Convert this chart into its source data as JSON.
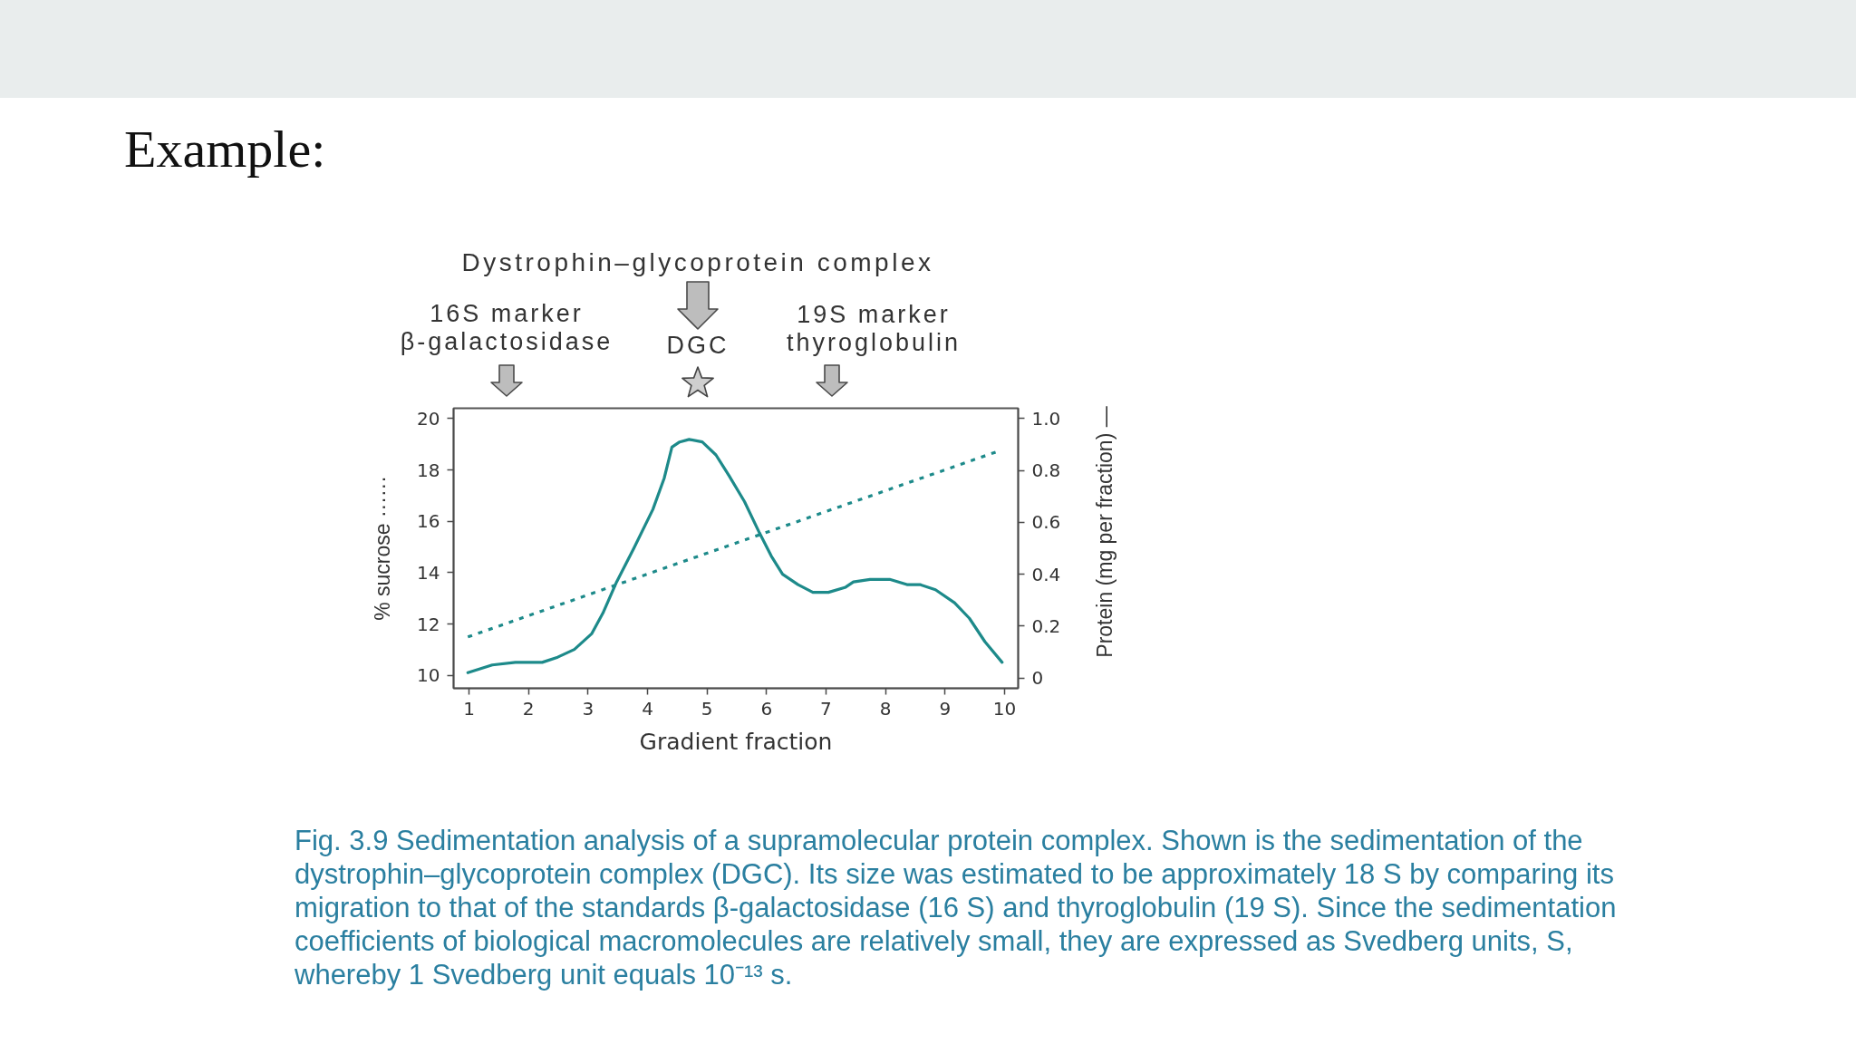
{
  "chart_data": {
    "type": "line",
    "title": "Example:",
    "xlabel": "Gradient fraction",
    "ylabel": "% sucrose ······",
    "y2label": "Protein (mg per fraction) —",
    "xlim": [
      0.74,
      10.23
    ],
    "xticks": [
      1,
      2,
      3,
      4,
      5,
      6,
      7,
      8,
      9,
      10
    ],
    "ylim": [
      9.5,
      20.4
    ],
    "yticks": [
      10,
      12,
      14,
      16,
      18,
      20
    ],
    "y2lim": [
      -0.04,
      1.04
    ],
    "y2ticks": [
      0,
      0.2,
      0.4,
      0.6,
      0.8,
      {
        "value": 1,
        "label": "1.0"
      }
    ],
    "series": [
      {
        "color": "#1d8a8a",
        "line_style": "dotted",
        "x": [
          0.98,
          9.86
        ],
        "values": [
          11.5,
          18.7
        ]
      },
      {
        "color": "#1d8a8a",
        "line_style": "solid",
        "axis": "y2",
        "x": [
          0.98,
          1.39,
          1.78,
          2.23,
          2.49,
          2.77,
          3.06,
          3.25,
          3.48,
          3.77,
          4.09,
          4.28,
          4.41,
          4.54,
          4.7,
          4.92,
          5.15,
          5.37,
          5.63,
          5.88,
          6.08,
          6.27,
          6.53,
          6.78,
          7.04,
          7.33,
          7.46,
          7.74,
          8.07,
          8.36,
          8.58,
          8.84,
          9.16,
          9.41,
          9.67,
          9.96
        ],
        "values": [
          0.02,
          0.05,
          0.06,
          0.06,
          0.08,
          0.11,
          0.17,
          0.25,
          0.37,
          0.5,
          0.65,
          0.77,
          0.89,
          0.91,
          0.92,
          0.91,
          0.86,
          0.78,
          0.68,
          0.56,
          0.47,
          0.4,
          0.36,
          0.33,
          0.33,
          0.35,
          0.37,
          0.38,
          0.38,
          0.36,
          0.36,
          0.34,
          0.29,
          0.23,
          0.14,
          0.06
        ]
      }
    ],
    "annotations": [
      "Dystrophin–glycoprotein complex",
      "16S marker\nβ-galactosidase",
      "DGC",
      "19S marker\nthyroglobulin",
      "Fig. 3.9 Sedimentation analysis of a supramolecular protein complex. Shown is the sedimentation of the dystrophin–glycoprotein complex (DGC). Its size was estimated to be approximately 18 S by comparing its migration to that of the standards β-galactosidase (16 S) and thyroglobulin (19 S). Since the sedimentation coefficients of biological macromolecules are relatively small, they are expressed as Svedberg units, S, whereby 1 Svedberg unit equals 10⁻¹³ s."
    ]
  }
}
